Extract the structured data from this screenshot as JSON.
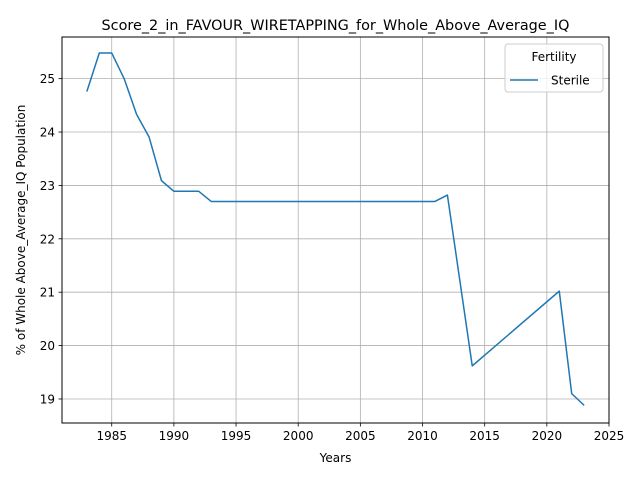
{
  "chart_data": {
    "type": "line",
    "title": "Score_2_in_FAVOUR_WIRETAPPING_for_Whole_Above_Average_IQ",
    "xlabel": "Years",
    "ylabel": "% of Whole Above_Average_IQ Population",
    "xlim": [
      1981.0,
      2025.0
    ],
    "ylim": [
      18.55,
      25.78
    ],
    "x_ticks": [
      1985,
      1990,
      1995,
      2000,
      2005,
      2010,
      2015,
      2020,
      2025
    ],
    "y_ticks": [
      19,
      20,
      21,
      22,
      23,
      24,
      25
    ],
    "grid": true,
    "legend": {
      "title": "Fertility",
      "position": "top-right"
    },
    "series": [
      {
        "name": "Sterile",
        "color": "#1f77b4",
        "x": [
          1983,
          1984,
          1985,
          1986,
          1987,
          1988,
          1989,
          1990,
          1991,
          1992,
          1993,
          1994,
          1995,
          1996,
          1997,
          1998,
          1999,
          2000,
          2001,
          2002,
          2003,
          2004,
          2005,
          2006,
          2007,
          2008,
          2009,
          2010,
          2011,
          2012,
          2014,
          2021,
          2022,
          2023
        ],
        "y": [
          24.76,
          25.48,
          25.48,
          25.0,
          24.33,
          23.91,
          23.09,
          22.89,
          22.89,
          22.89,
          22.7,
          22.7,
          22.7,
          22.7,
          22.7,
          22.7,
          22.7,
          22.7,
          22.7,
          22.7,
          22.7,
          22.7,
          22.7,
          22.7,
          22.7,
          22.7,
          22.7,
          22.7,
          22.7,
          22.82,
          19.62,
          21.02,
          19.1,
          18.88
        ]
      }
    ]
  }
}
